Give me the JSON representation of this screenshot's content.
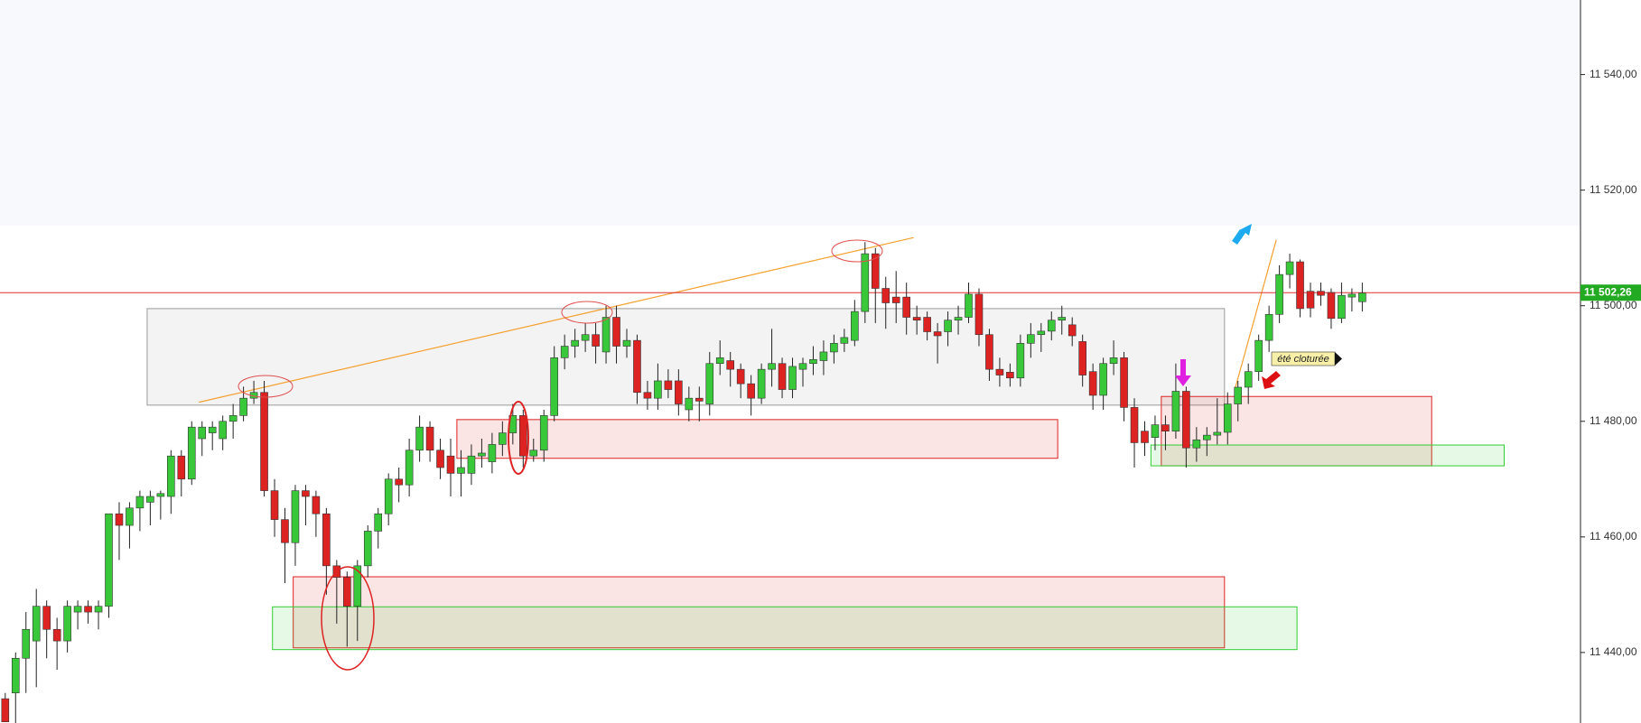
{
  "chart_data": {
    "type": "candlestick",
    "up_color": "#39c839",
    "down_color": "#dd2222",
    "open": [
      11432,
      11433,
      11439,
      11442,
      11448,
      11444,
      11442,
      11447,
      11448,
      11447,
      11448,
      11464,
      11462,
      11465,
      11466,
      11467,
      11467,
      11474,
      11470,
      11477,
      11478,
      11477,
      11480,
      11481,
      11484,
      11485,
      11468,
      11463,
      11459,
      11468,
      11467,
      11464,
      11455,
      11453,
      11448,
      11455,
      11461,
      11464,
      11470,
      11469,
      11475,
      11479,
      11475,
      11474,
      11471,
      11471,
      11474,
      11473,
      11476,
      11478,
      11481,
      11474,
      11475,
      11481,
      11491,
      11493,
      11494,
      11495,
      11492,
      11498,
      11493,
      11494,
      11485,
      11484,
      11487,
      11487,
      11482,
      11484,
      11483,
      11490,
      11490.5,
      11489,
      11486.5,
      11484,
      11489,
      11490,
      11485.5,
      11489,
      11490,
      11490.5,
      11492,
      11493.5,
      11494,
      11499,
      11509,
      11503,
      11501.5,
      11501.5,
      11498,
      11498,
      11495.5,
      11495.5,
      11497.5,
      11498,
      11502,
      11495,
      11489,
      11488.5,
      11487.5,
      11493.5,
      11495,
      11495.6,
      11497.5,
      11496.7,
      11493.8,
      11488.6,
      11484.5,
      11490,
      11491,
      11482.4,
      11478.3,
      11477.2,
      11479.4,
      11478.3,
      11485.2,
      11475.4,
      11476.8,
      11477.6,
      11478.1,
      11483,
      11485.9,
      11488.6,
      11494,
      11498.5,
      11505.4,
      11507.6,
      11502.5,
      11502.5,
      11502.3,
      11497.8,
      11501.5,
      11500.7
    ],
    "high": [
      11433,
      11440,
      11447,
      11451,
      11449,
      11446,
      11449,
      11449,
      11449,
      11449,
      11464,
      11466,
      11466,
      11468,
      11468,
      11468,
      11475,
      11475,
      11480,
      11480,
      11480,
      11481,
      11483,
      11486,
      11487,
      11487,
      11470,
      11465,
      11469,
      11469,
      11468,
      11465,
      11456,
      11454,
      11456,
      11462,
      11465,
      11471,
      11472,
      11477,
      11481,
      11480,
      11477,
      11477,
      11475,
      11476,
      11477,
      11478,
      11480,
      11483,
      11482,
      11477,
      11482,
      11493,
      11495,
      11496,
      11497,
      11497,
      11500,
      11500,
      11496,
      11495,
      11487,
      11490,
      11489,
      11489,
      11486,
      11486,
      11492,
      11494,
      11492,
      11490,
      11488,
      11490,
      11496,
      11491,
      11491,
      11491,
      11493,
      11494,
      11495,
      11496,
      11501,
      11511,
      11510,
      11505,
      11506,
      11504,
      11500,
      11499,
      11497,
      11499,
      11500,
      11504,
      11503,
      11496,
      11491,
      11490,
      11495,
      11497,
      11497,
      11499,
      11500,
      11498,
      11495,
      11490,
      11491,
      11494,
      11492,
      11484,
      11480,
      11481,
      11481,
      11490,
      11486,
      11479,
      11479,
      11484,
      11485,
      11487,
      11490,
      11495,
      11500,
      11507,
      11509,
      11508,
      11504,
      11504,
      11503,
      11504,
      11503,
      11504
    ],
    "low": [
      11428,
      11427,
      11433,
      11434,
      11439,
      11437,
      11440,
      11444,
      11445,
      11444,
      11446,
      11456,
      11458,
      11461,
      11462,
      11463,
      11464,
      11467,
      11469,
      11474,
      11475,
      11475,
      11477,
      11480,
      11483,
      11467,
      11460,
      11452,
      11455,
      11462,
      11460,
      11450,
      11445,
      11441,
      11442,
      11453,
      11458,
      11462,
      11466,
      11467,
      11473,
      11473,
      11470,
      11467,
      11467,
      11469,
      11472,
      11471,
      11474,
      11476,
      11472,
      11473,
      11473,
      11480,
      11489,
      11491,
      11492,
      11490,
      11490,
      11490,
      11491,
      11483,
      11482,
      11482,
      11484,
      11481,
      11480,
      11480,
      11481,
      11488,
      11486,
      11484,
      11481,
      11483,
      11486,
      11484,
      11484,
      11486,
      11488,
      11488,
      11490,
      11492,
      11493,
      11497,
      11497,
      11496,
      11497,
      11495,
      11495,
      11494,
      11490,
      11493,
      11495,
      11497,
      11493,
      11487,
      11486,
      11486,
      11486,
      11491,
      11492,
      11494,
      11495,
      11493,
      11486,
      11482,
      11482,
      11488,
      11480,
      11472,
      11474,
      11475,
      11475,
      11477,
      11472,
      11473,
      11474,
      11476,
      11476,
      11480,
      11483,
      11487,
      11492,
      11497,
      11503,
      11498,
      11498,
      11500,
      11496,
      11497,
      11499,
      11499
    ],
    "close": [
      11428,
      11439,
      11444,
      11448,
      11444,
      11442,
      11448,
      11448,
      11447,
      11448,
      11464,
      11462,
      11465,
      11467,
      11467,
      11467.5,
      11474,
      11470,
      11479,
      11479,
      11479,
      11480,
      11481,
      11484,
      11485,
      11468,
      11463,
      11459,
      11468,
      11467,
      11464,
      11455,
      11453,
      11448,
      11455,
      11461,
      11464,
      11470,
      11469,
      11475,
      11479,
      11475,
      11472,
      11471,
      11472,
      11474,
      11474.5,
      11476,
      11478,
      11481,
      11474,
      11475,
      11481,
      11491,
      11493,
      11494,
      11495,
      11493,
      11498,
      11493,
      11494,
      11485,
      11484,
      11487,
      11485.5,
      11483,
      11484,
      11483.5,
      11490,
      11491,
      11489,
      11486.5,
      11484,
      11489,
      11490,
      11485.5,
      11489.5,
      11490,
      11490.7,
      11492,
      11493.5,
      11494.5,
      11499,
      11509,
      11503,
      11500.5,
      11500.5,
      11498,
      11497.5,
      11495.5,
      11494.8,
      11497.5,
      11498,
      11502,
      11495,
      11489,
      11488,
      11487.5,
      11493.5,
      11495,
      11495.6,
      11497.5,
      11498,
      11494.8,
      11488,
      11484.5,
      11490,
      11491,
      11482.4,
      11476.3,
      11476.3,
      11479.4,
      11478.3,
      11485.2,
      11475.4,
      11476.8,
      11477.6,
      11478.1,
      11483,
      11485.9,
      11488.6,
      11494,
      11498.5,
      11505.4,
      11507.6,
      11499.5,
      11499.6,
      11501.8,
      11497.8,
      11501.8,
      11502,
      11502.2
    ],
    "ylim": [
      11427.8,
      11552.9
    ],
    "yticks": [
      {
        "value": 11440,
        "label": "11 440,00"
      },
      {
        "value": 11460,
        "label": "11 460,00"
      },
      {
        "value": 11480,
        "label": "11 480,00"
      },
      {
        "value": 11500,
        "label": "11 500,00"
      },
      {
        "value": 11520,
        "label": "11 520,00"
      },
      {
        "value": 11540,
        "label": "11 540,00"
      }
    ],
    "last_price": {
      "value": 11502.26,
      "label": "11 502,26"
    },
    "zones": [
      {
        "x": [
          13.7,
          117.7
        ],
        "y": [
          11482.8,
          11499.5
        ],
        "color": "#999999"
      },
      {
        "x": [
          27.8,
          117.7
        ],
        "y": [
          11440.8,
          11453.1
        ],
        "color": "#dd2222"
      },
      {
        "x": [
          25.8,
          124.7
        ],
        "y": [
          11440.5,
          11447.9
        ],
        "color": "#33cc33"
      },
      {
        "x": [
          43.6,
          101.6
        ],
        "y": [
          11473.6,
          11480.3
        ],
        "color": "#dd2222"
      },
      {
        "x": [
          111.6,
          137.7
        ],
        "y": [
          11472.3,
          11484.3
        ],
        "color": "#dd2222"
      },
      {
        "x": [
          110.6,
          144.7
        ],
        "y": [
          11472.3,
          11475.9
        ],
        "color": "#33cc33"
      }
    ],
    "trendlines": [
      {
        "x": [
          18.7,
          87.7
        ],
        "y": [
          11483.3,
          11511.8
        ],
        "color": "#f5a030"
      },
      {
        "x": [
          118.7,
          122.7
        ],
        "y": [
          11485.5,
          11511.4
        ],
        "color": "#f5a030"
      }
    ],
    "annotation": "été cloturée"
  }
}
